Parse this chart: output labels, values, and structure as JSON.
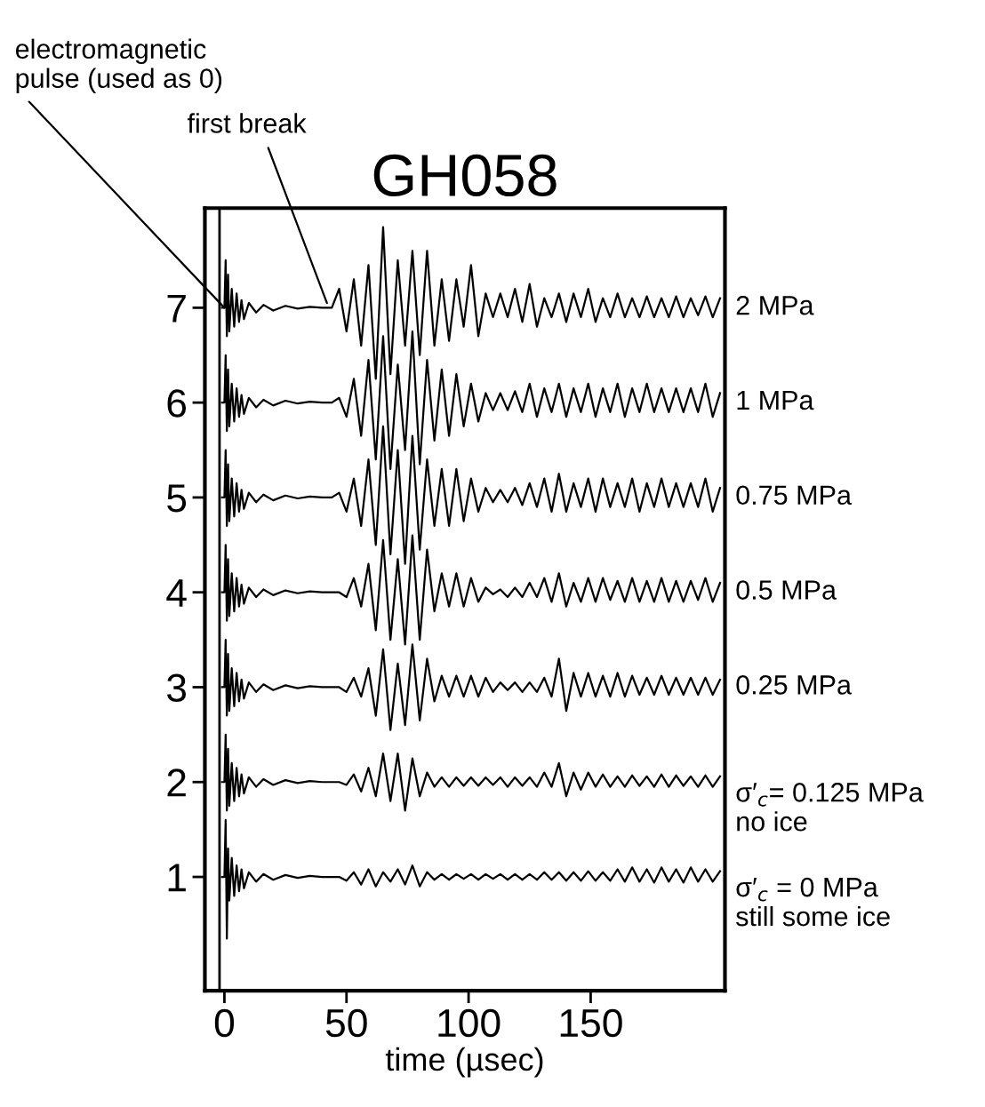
{
  "chart_data": {
    "type": "line",
    "title": "GH058",
    "xlabel": "time (µsec)",
    "xlim": [
      -8,
      205
    ],
    "ylim": [
      -0.2,
      8.05
    ],
    "xticks": [
      0,
      50,
      100,
      150
    ],
    "yticks": [
      1,
      2,
      3,
      4,
      5,
      6,
      7
    ],
    "grid": false,
    "legend": false,
    "marker": "none",
    "line_style": "solid",
    "ref_lines": [
      {
        "axis": "x",
        "value": -2,
        "color": "#000000"
      }
    ],
    "annotations": [
      {
        "text": "electromagnetic\npulse (used as 0)",
        "x": 0,
        "y": 7
      },
      {
        "text": "first break",
        "x": 42,
        "y": 7.05
      }
    ],
    "x": [
      -1,
      0,
      0.5,
      1,
      1.5,
      2,
      3,
      4,
      5,
      6,
      7,
      8,
      10,
      13,
      16,
      20,
      25,
      30,
      35,
      40,
      44,
      47,
      50,
      53,
      56,
      59,
      62,
      65,
      68,
      71,
      74,
      77,
      80,
      83,
      86,
      89,
      92,
      95,
      98,
      101,
      104,
      107,
      110,
      113,
      116,
      119,
      122,
      125,
      128,
      131,
      134,
      137,
      140,
      143,
      146,
      149,
      152,
      155,
      158,
      161,
      164,
      167,
      170,
      173,
      176,
      179,
      182,
      185,
      188,
      191,
      194,
      197,
      200,
      203
    ],
    "series": [
      {
        "name": "2 MPa",
        "color": "#000000",
        "values": [
          7,
          7,
          7.5,
          6.7,
          7.35,
          6.75,
          7.2,
          6.8,
          7.15,
          6.85,
          7.08,
          6.88,
          7.05,
          6.95,
          7.03,
          6.97,
          7.02,
          6.99,
          7.01,
          7,
          7,
          7.2,
          6.75,
          7.3,
          6.6,
          7.45,
          6.25,
          7.85,
          6.3,
          7.5,
          6.6,
          7.6,
          6.5,
          7.6,
          6.6,
          7.3,
          6.65,
          7.3,
          6.8,
          7.45,
          6.7,
          7.15,
          6.9,
          7.15,
          6.9,
          7.2,
          6.85,
          7.25,
          6.8,
          7.1,
          6.9,
          7.15,
          6.85,
          7.15,
          6.9,
          7.2,
          6.85,
          7.1,
          6.9,
          7.15,
          6.9,
          7.1,
          6.9,
          7.12,
          6.9,
          7.1,
          6.9,
          7.12,
          6.9,
          7.1,
          6.92,
          7.12,
          6.9,
          7.1
        ]
      },
      {
        "name": "1 MPa",
        "color": "#000000",
        "values": [
          6,
          6,
          6.5,
          5.7,
          6.35,
          5.75,
          6.2,
          5.8,
          6.15,
          5.85,
          6.08,
          5.88,
          6.05,
          5.95,
          6.03,
          5.97,
          6.02,
          5.99,
          6.01,
          6,
          6,
          6.05,
          5.85,
          6.25,
          5.65,
          6.45,
          5.4,
          6.7,
          5.3,
          6.4,
          5.5,
          6.75,
          5.35,
          6.45,
          5.6,
          6.35,
          5.65,
          6.3,
          5.75,
          6.2,
          5.8,
          6.1,
          5.92,
          6.1,
          5.92,
          6.12,
          5.9,
          6.2,
          5.85,
          6.15,
          5.9,
          6.2,
          5.85,
          6.15,
          5.9,
          6.2,
          5.85,
          6.15,
          5.9,
          6.2,
          5.85,
          6.15,
          5.9,
          6.2,
          5.9,
          6.15,
          5.9,
          6.15,
          5.9,
          6.15,
          5.9,
          6.2,
          5.85,
          6.1
        ]
      },
      {
        "name": "0.75 MPa",
        "color": "#000000",
        "values": [
          5,
          5,
          5.5,
          4.7,
          5.35,
          4.75,
          5.2,
          4.8,
          5.15,
          4.85,
          5.08,
          4.88,
          5.05,
          4.95,
          5.03,
          4.97,
          5.02,
          4.99,
          5.01,
          5,
          5,
          5.05,
          4.85,
          5.2,
          4.7,
          5.4,
          4.5,
          5.75,
          4.4,
          5.5,
          4.3,
          5.65,
          4.45,
          5.4,
          4.7,
          5.3,
          4.7,
          5.3,
          4.75,
          5.2,
          4.85,
          5.1,
          4.95,
          5.08,
          4.95,
          5.1,
          4.92,
          5.15,
          4.9,
          5.2,
          4.85,
          5.25,
          4.85,
          5.15,
          4.9,
          5.2,
          4.85,
          5.2,
          4.9,
          5.15,
          4.9,
          5.2,
          4.85,
          5.15,
          4.9,
          5.2,
          4.9,
          5.15,
          4.9,
          5.15,
          4.9,
          5.2,
          4.85,
          5.1
        ]
      },
      {
        "name": "0.5 MPa",
        "color": "#000000",
        "values": [
          4,
          4,
          4.5,
          3.7,
          4.35,
          3.75,
          4.2,
          3.8,
          4.15,
          3.85,
          4.08,
          3.88,
          4.05,
          3.95,
          4.03,
          3.97,
          4.02,
          3.99,
          4.01,
          4,
          4,
          4,
          3.95,
          4.15,
          3.85,
          4.3,
          3.6,
          4.55,
          3.5,
          4.35,
          3.45,
          4.6,
          3.5,
          4.45,
          3.8,
          4.2,
          3.85,
          4.2,
          3.85,
          4.15,
          3.9,
          4.05,
          3.98,
          4.03,
          3.95,
          4.05,
          3.95,
          4.1,
          3.95,
          4.15,
          3.9,
          4.2,
          3.85,
          4.1,
          3.9,
          4.15,
          3.9,
          4.15,
          3.92,
          4.12,
          3.9,
          4.15,
          3.9,
          4.12,
          3.9,
          4.15,
          3.9,
          4.12,
          3.9,
          4.12,
          3.92,
          4.15,
          3.9,
          4.1
        ]
      },
      {
        "name": "0.25 MPa",
        "color": "#000000",
        "values": [
          3,
          3,
          3.5,
          2.7,
          3.35,
          2.75,
          3.2,
          2.8,
          3.15,
          2.85,
          3.08,
          2.88,
          3.05,
          2.95,
          3.03,
          2.97,
          3.02,
          2.99,
          3.01,
          3,
          3,
          3,
          2.95,
          3.1,
          2.9,
          3.2,
          2.7,
          3.4,
          2.55,
          3.25,
          2.6,
          3.45,
          2.65,
          3.3,
          2.85,
          3.12,
          2.9,
          3.12,
          2.9,
          3.12,
          2.9,
          3.1,
          2.95,
          3.05,
          2.97,
          3.05,
          2.95,
          3.05,
          2.95,
          3.1,
          2.9,
          3.3,
          2.75,
          3.15,
          2.9,
          3.15,
          2.9,
          3.12,
          2.9,
          3.15,
          2.9,
          3.12,
          2.92,
          3.1,
          2.92,
          3.12,
          2.92,
          3.1,
          2.92,
          3.1,
          2.92,
          3.1,
          2.92,
          3.08
        ]
      },
      {
        "name": "σ′$_{c}$= 0.125 MPa\nno ice",
        "color": "#000000",
        "values": [
          2,
          2,
          2.5,
          1.7,
          2.35,
          1.75,
          2.2,
          1.8,
          2.15,
          1.85,
          2.08,
          1.88,
          2.05,
          1.95,
          2.03,
          1.97,
          2.02,
          1.99,
          2.01,
          2,
          2,
          2,
          1.97,
          2.08,
          1.9,
          2.15,
          1.85,
          2.3,
          1.8,
          2.3,
          1.7,
          2.25,
          1.85,
          2.1,
          1.95,
          2.05,
          1.95,
          2.05,
          1.96,
          2.05,
          1.96,
          2.05,
          1.97,
          2.05,
          1.95,
          2.05,
          1.96,
          2.05,
          1.95,
          2.1,
          1.95,
          2.2,
          1.85,
          2.1,
          1.92,
          2.1,
          1.95,
          2.08,
          1.95,
          2.06,
          1.95,
          2.07,
          1.96,
          2.06,
          1.95,
          2.08,
          1.95,
          2.07,
          1.96,
          2.06,
          1.95,
          2.07,
          1.95,
          2.06
        ]
      },
      {
        "name": "σ′$_{c}$ = 0 MPa\nstill some ice",
        "color": "#000000",
        "values": [
          1,
          1,
          1.6,
          0.35,
          1.3,
          0.75,
          1.2,
          0.8,
          1.12,
          0.85,
          1.08,
          0.88,
          1.05,
          0.95,
          1.03,
          0.97,
          1.02,
          0.99,
          1.01,
          1,
          1,
          1,
          0.96,
          1.05,
          0.92,
          1.08,
          0.9,
          1.05,
          0.95,
          1.08,
          0.92,
          1.12,
          0.9,
          1.05,
          0.97,
          1.03,
          0.97,
          1.03,
          0.98,
          1.03,
          0.97,
          1.03,
          0.98,
          1.03,
          0.97,
          1.03,
          0.97,
          1.03,
          0.97,
          1.05,
          0.97,
          1.05,
          0.96,
          1.05,
          0.96,
          1.06,
          0.96,
          1.05,
          0.96,
          1.08,
          0.95,
          1.1,
          0.95,
          1.08,
          0.94,
          1.1,
          0.95,
          1.08,
          0.94,
          1.1,
          0.95,
          1.08,
          0.95,
          1.06
        ]
      }
    ]
  }
}
